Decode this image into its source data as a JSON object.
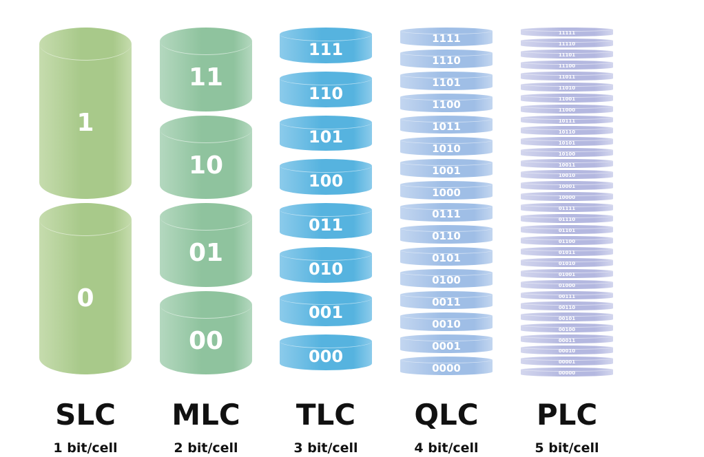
{
  "columns": [
    {
      "name": "SLC",
      "subtitle": "1 bit/cell",
      "bits": 1,
      "color": "#a8c98a",
      "color_light": "#c6dcae"
    },
    {
      "name": "MLC",
      "subtitle": "2 bit/cell",
      "bits": 2,
      "color": "#8fc39e",
      "color_light": "#b4d8bf"
    },
    {
      "name": "TLC",
      "subtitle": "3 bit/cell",
      "bits": 3,
      "color": "#56b3df",
      "color_light": "#8ccbeb"
    },
    {
      "name": "QLC",
      "subtitle": "4 bit/cell",
      "bits": 4,
      "color": "#9fbee6",
      "color_light": "#c3d6f0"
    },
    {
      "name": "PLC",
      "subtitle": "5 bit/cell",
      "bits": 5,
      "color": "#b4b8e0",
      "color_light": "#d3d6ee"
    }
  ]
}
